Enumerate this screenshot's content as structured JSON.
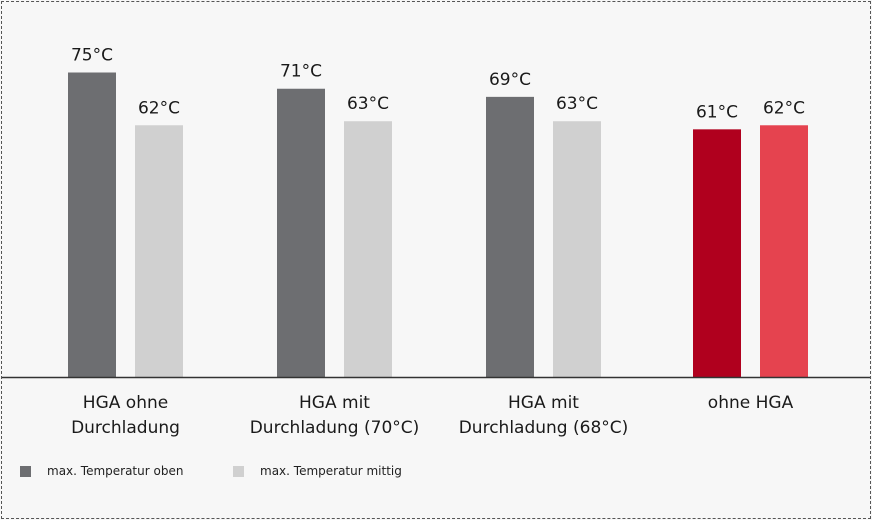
{
  "chart_data": {
    "type": "bar",
    "categories": [
      [
        "HGA ohne",
        "Durchladung"
      ],
      [
        "HGA mit",
        "Durchladung (70°C)"
      ],
      [
        "HGA mit",
        "Durchladung (68°C)"
      ],
      [
        "ohne HGA"
      ]
    ],
    "series": [
      {
        "name": "max. Temperatur oben",
        "values": [
          75,
          71,
          69,
          61
        ],
        "labels": [
          "75°C",
          "71°C",
          "69°C",
          "61°C"
        ],
        "colors": [
          "#6d6e71",
          "#6d6e71",
          "#6d6e71",
          "#b0001e"
        ]
      },
      {
        "name": "max. Temperatur mittig",
        "values": [
          62,
          63,
          63,
          62
        ],
        "labels": [
          "62°C",
          "63°C",
          "63°C",
          "62°C"
        ],
        "colors": [
          "#d0d0d0",
          "#d0d0d0",
          "#d0d0d0",
          "#e5434f"
        ]
      }
    ],
    "ylim": [
      0,
      80
    ],
    "grid": false,
    "legend_position": "bottom-left",
    "baseline_color": "#333333",
    "title": "",
    "xlabel": "",
    "ylabel": ""
  }
}
